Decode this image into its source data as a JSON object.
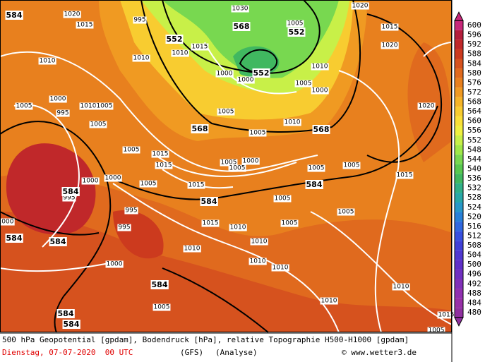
{
  "caption": {
    "line1": "500 hPa Geopotential [gpdam], Bodendruck [hPa], relative Topographie H500-H1000 [gpdam]",
    "date": "Dienstag, 07-07-2020  00 UTC",
    "model": "(GFS)",
    "run": "(Analyse)",
    "credit": "© www.wetter3.de"
  },
  "legend": {
    "labels": [
      600,
      596,
      592,
      588,
      584,
      580,
      576,
      572,
      568,
      564,
      560,
      556,
      552,
      548,
      544,
      540,
      536,
      532,
      528,
      524,
      520,
      516,
      512,
      508,
      504,
      500,
      496,
      492,
      488,
      484,
      480
    ],
    "colors": [
      "#c8287a",
      "#b41e3c",
      "#c0282a",
      "#cc3a1e",
      "#d6521e",
      "#e06a1e",
      "#e8801e",
      "#f09a22",
      "#f5b428",
      "#f8cc30",
      "#fae038",
      "#f0f040",
      "#c8f048",
      "#a0e848",
      "#78d850",
      "#58c850",
      "#40b860",
      "#30b088",
      "#28a8a8",
      "#2898c8",
      "#2880d8",
      "#3068e0",
      "#3850e0",
      "#4040d8",
      "#5038d0",
      "#6030c8",
      "#7030c0",
      "#8030b8",
      "#9030b0",
      "#9830a8",
      "#9030a0"
    ]
  },
  "map": {
    "geopotential_labels": [
      "584",
      "552",
      "568",
      "552",
      "552",
      "568",
      "568",
      "584",
      "584",
      "584",
      "584",
      "584",
      "584",
      "584",
      "584"
    ],
    "pressure_labels": [
      "1020",
      "995",
      "1015",
      "1030",
      "1005",
      "1020",
      "1015",
      "1020",
      "1010",
      "1010",
      "1015",
      "1010",
      "1000",
      "1000",
      "1005",
      "1000",
      "1010",
      "1020",
      "1000",
      "1005",
      "995",
      "1010",
      "1005",
      "1005",
      "1005",
      "1005",
      "1005",
      "1010",
      "1015",
      "1015",
      "1005",
      "1000",
      "1005",
      "1005",
      "1005",
      "1015",
      "1000",
      "1000",
      "1005",
      "1015",
      "995",
      "995",
      "995",
      "1000",
      "1005",
      "1005",
      "1005",
      "1015",
      "1010",
      "1010",
      "1010",
      "1010",
      "1010",
      "1000",
      "1005",
      "1010",
      "1010",
      "1015",
      "1005"
    ]
  }
}
